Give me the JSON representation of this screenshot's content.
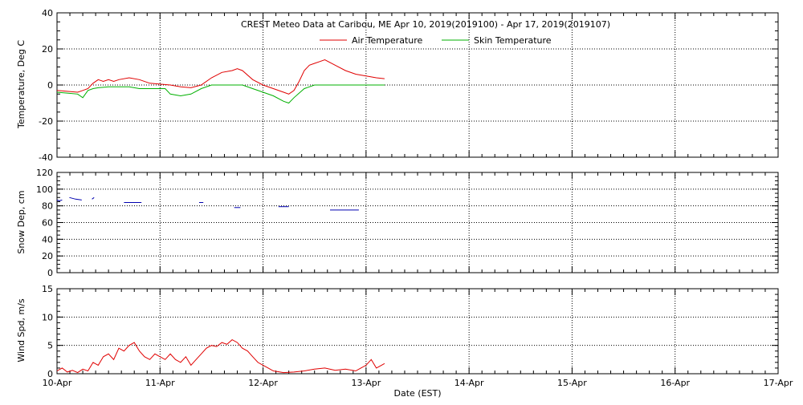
{
  "title": "CREST Meteo Data at Caribou, ME   Apr 10, 2019(2019100) - Apr 17, 2019(2019107)",
  "xlabel": "Date (EST)",
  "xticks": [
    "10-Apr",
    "11-Apr",
    "12-Apr",
    "13-Apr",
    "14-Apr",
    "15-Apr",
    "16-Apr",
    "17-Apr"
  ],
  "colors": {
    "air": "#e00000",
    "skin": "#00b000",
    "snow": "#0000b0",
    "wind": "#e00000"
  },
  "chart_data": [
    {
      "type": "line",
      "ylabel": "Temperature, Deg C",
      "ylim": [
        -40,
        40
      ],
      "yticks": [
        40,
        20,
        0,
        -20,
        -40
      ],
      "xlim": [
        0,
        7
      ],
      "grid": true,
      "legend": "top-center",
      "series": [
        {
          "name": "Air Temperature",
          "color": "air",
          "x": [
            0.0,
            0.1,
            0.2,
            0.25,
            0.3,
            0.35,
            0.4,
            0.45,
            0.5,
            0.55,
            0.6,
            0.7,
            0.8,
            0.9,
            1.0,
            1.1,
            1.2,
            1.3,
            1.4,
            1.5,
            1.6,
            1.7,
            1.75,
            1.8,
            1.9,
            2.0,
            2.1,
            2.2,
            2.25,
            2.3,
            2.35,
            2.4,
            2.45,
            2.5,
            2.55,
            2.6,
            2.7,
            2.8,
            2.9,
            3.0,
            3.1,
            3.18
          ],
          "y": [
            -3,
            -3.5,
            -4,
            -3,
            -2,
            1,
            3,
            2,
            3,
            2,
            3,
            4,
            3,
            1,
            0.5,
            0,
            -1,
            -1.5,
            0,
            4,
            7,
            8,
            9,
            8,
            3,
            0,
            -2,
            -4,
            -5,
            -3,
            2,
            8,
            11,
            12,
            13,
            14,
            11,
            8,
            6,
            5,
            4,
            3.5
          ]
        },
        {
          "name": "Skin Temperature",
          "color": "skin",
          "x": [
            0.0,
            0.1,
            0.2,
            0.25,
            0.3,
            0.35,
            0.4,
            0.5,
            0.6,
            0.7,
            0.8,
            0.9,
            1.0,
            1.05,
            1.1,
            1.2,
            1.3,
            1.4,
            1.5,
            1.6,
            1.7,
            1.8,
            1.9,
            2.0,
            2.1,
            2.2,
            2.25,
            2.3,
            2.4,
            2.5,
            3.18
          ],
          "y": [
            -4,
            -4.5,
            -5,
            -7,
            -3,
            -2,
            -1.5,
            -1,
            -1,
            -1,
            -2,
            -2,
            -2,
            -2,
            -5,
            -6,
            -5,
            -2,
            0,
            0,
            0,
            0,
            -2,
            -4,
            -6,
            -9,
            -10,
            -7,
            -2,
            0,
            0
          ]
        }
      ]
    },
    {
      "type": "scatter",
      "ylabel": "Snow Dep, cm",
      "ylim": [
        0,
        120
      ],
      "yticks": [
        120,
        100,
        80,
        60,
        40,
        20,
        0
      ],
      "xlim": [
        0,
        7
      ],
      "grid": true,
      "series": [
        {
          "color": "snow",
          "segments": [
            {
              "x": [
                0.0,
                0.02,
                0.05
              ],
              "y": [
                87,
                86,
                87
              ]
            },
            {
              "x": [
                0.12,
                0.18,
                0.24
              ],
              "y": [
                90,
                88,
                87
              ]
            },
            {
              "x": [
                0.34,
                0.36
              ],
              "y": [
                88,
                90
              ]
            },
            {
              "x": [
                0.65,
                0.75,
                0.82
              ],
              "y": [
                84,
                84,
                84
              ]
            },
            {
              "x": [
                1.38,
                1.42
              ],
              "y": [
                84,
                84
              ]
            },
            {
              "x": [
                1.72,
                1.78
              ],
              "y": [
                78,
                78
              ]
            },
            {
              "x": [
                2.15,
                2.25
              ],
              "y": [
                79,
                79
              ]
            },
            {
              "x": [
                2.65,
                2.93
              ],
              "y": [
                75,
                75
              ]
            }
          ]
        }
      ]
    },
    {
      "type": "line",
      "ylabel": "Wind Spd, m/s",
      "ylim": [
        0,
        15
      ],
      "yticks": [
        15,
        10,
        5,
        0
      ],
      "xlim": [
        0,
        7
      ],
      "grid": true,
      "series": [
        {
          "color": "wind",
          "x": [
            0.0,
            0.05,
            0.1,
            0.15,
            0.2,
            0.25,
            0.3,
            0.35,
            0.4,
            0.45,
            0.5,
            0.55,
            0.6,
            0.65,
            0.7,
            0.75,
            0.8,
            0.85,
            0.9,
            0.95,
            1.0,
            1.05,
            1.1,
            1.15,
            1.2,
            1.25,
            1.3,
            1.35,
            1.4,
            1.45,
            1.5,
            1.55,
            1.6,
            1.65,
            1.7,
            1.75,
            1.8,
            1.85,
            1.9,
            1.95,
            2.0,
            2.05,
            2.1,
            2.2,
            2.3,
            2.4,
            2.5,
            2.6,
            2.7,
            2.8,
            2.9,
            2.95,
            3.0,
            3.05,
            3.1,
            3.15,
            3.18
          ],
          "y": [
            0.5,
            1.0,
            0.3,
            0.6,
            0.2,
            0.8,
            0.5,
            2.0,
            1.5,
            3.0,
            3.5,
            2.5,
            4.5,
            4.0,
            5.0,
            5.5,
            4.0,
            3.0,
            2.5,
            3.5,
            3.0,
            2.5,
            3.5,
            2.5,
            2.0,
            3.0,
            1.5,
            2.5,
            3.5,
            4.5,
            5.0,
            4.8,
            5.5,
            5.2,
            6.0,
            5.5,
            4.5,
            4.0,
            3.0,
            2.0,
            1.5,
            1.0,
            0.5,
            0.2,
            0.3,
            0.5,
            0.8,
            1.0,
            0.6,
            0.8,
            0.5,
            1.0,
            1.5,
            2.5,
            1.0,
            1.5,
            1.8
          ]
        }
      ]
    }
  ]
}
